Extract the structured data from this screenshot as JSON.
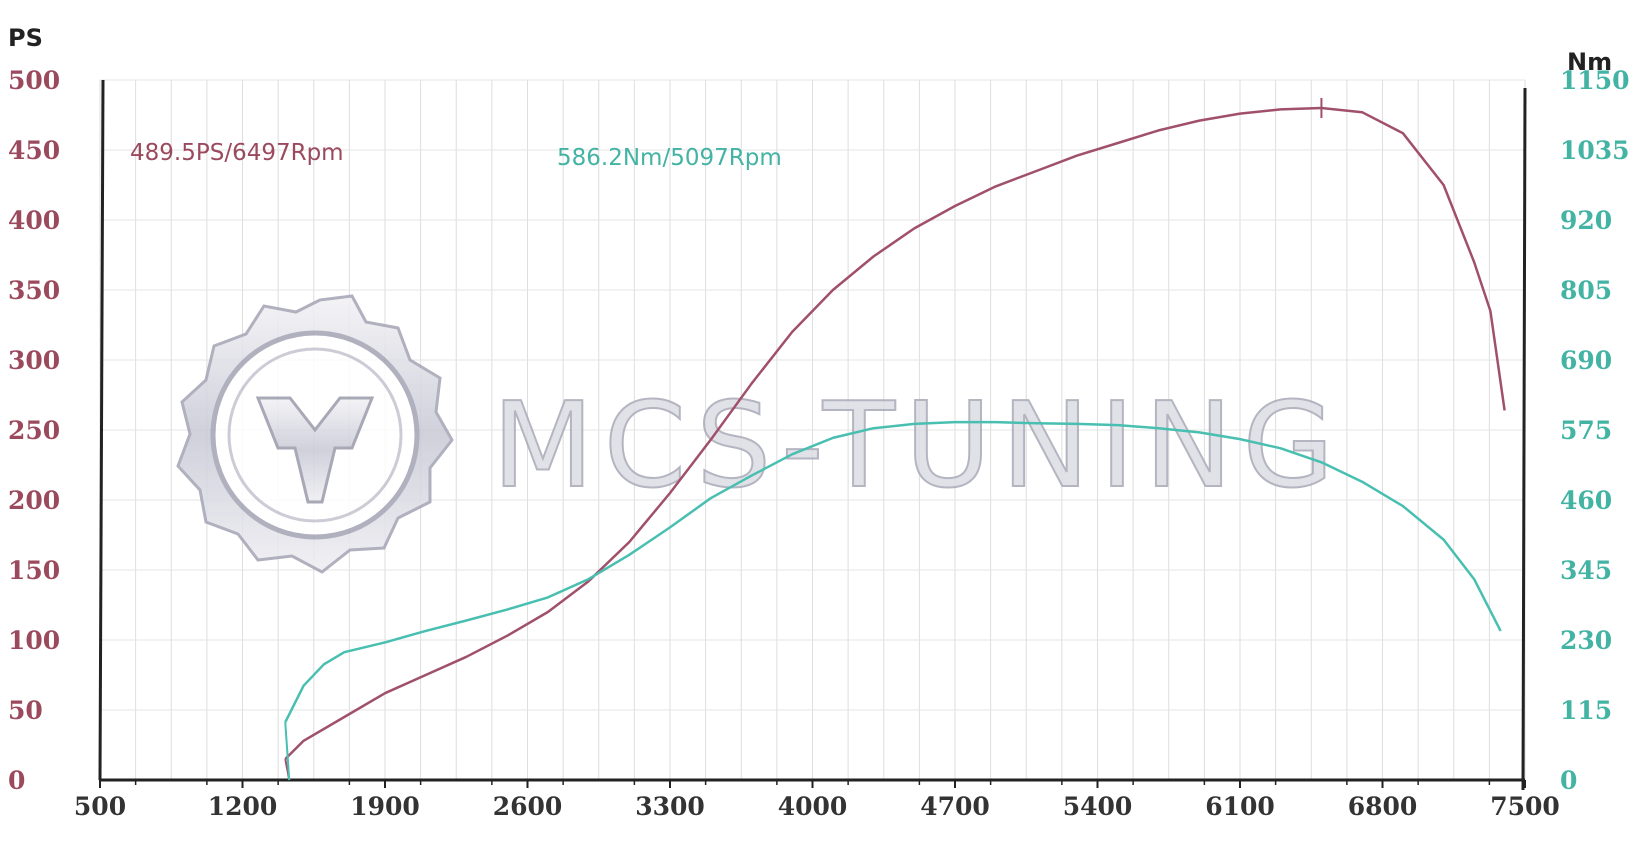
{
  "chart_data": {
    "type": "line",
    "x_range": [
      500,
      7500
    ],
    "x_ticks": [
      "500",
      "1200",
      "1900",
      "2600",
      "3300",
      "4000",
      "4700",
      "5400",
      "6100",
      "6800",
      "7500"
    ],
    "y_left": {
      "label": "PS",
      "range": [
        0,
        500
      ],
      "ticks": [
        "0",
        "50",
        "100",
        "150",
        "200",
        "250",
        "300",
        "350",
        "400",
        "450",
        "500"
      ]
    },
    "y_right": {
      "label": "Nm",
      "range": [
        0,
        1150
      ],
      "ticks": [
        "0",
        "115",
        "230",
        "345",
        "460",
        "575",
        "690",
        "805",
        "920",
        "1035",
        "1150"
      ]
    },
    "grid": true,
    "series": [
      {
        "axis": "left",
        "color": "#a0506a",
        "points": [
          [
            1410,
            15
          ],
          [
            1500,
            28
          ],
          [
            1700,
            45
          ],
          [
            1900,
            62
          ],
          [
            2100,
            75
          ],
          [
            2300,
            88
          ],
          [
            2500,
            103
          ],
          [
            2700,
            120
          ],
          [
            2900,
            142
          ],
          [
            3100,
            170
          ],
          [
            3300,
            205
          ],
          [
            3500,
            243
          ],
          [
            3700,
            283
          ],
          [
            3900,
            320
          ],
          [
            4100,
            350
          ],
          [
            4300,
            374
          ],
          [
            4500,
            394
          ],
          [
            4700,
            410
          ],
          [
            4900,
            424
          ],
          [
            5100,
            435
          ],
          [
            5300,
            446
          ],
          [
            5500,
            455
          ],
          [
            5700,
            464
          ],
          [
            5900,
            471
          ],
          [
            6100,
            476
          ],
          [
            6300,
            479
          ],
          [
            6500,
            480
          ],
          [
            6700,
            477
          ],
          [
            6900,
            462
          ],
          [
            7100,
            425
          ],
          [
            7250,
            370
          ],
          [
            7330,
            335
          ],
          [
            7400,
            264
          ]
        ]
      },
      {
        "axis": "right",
        "color": "#48bfb0",
        "points": [
          [
            1410,
            95
          ],
          [
            1500,
            155
          ],
          [
            1600,
            190
          ],
          [
            1700,
            210
          ],
          [
            1900,
            226
          ],
          [
            2100,
            245
          ],
          [
            2300,
            262
          ],
          [
            2500,
            280
          ],
          [
            2700,
            300
          ],
          [
            2900,
            330
          ],
          [
            3100,
            370
          ],
          [
            3300,
            415
          ],
          [
            3500,
            463
          ],
          [
            3700,
            500
          ],
          [
            3900,
            535
          ],
          [
            4100,
            562
          ],
          [
            4300,
            578
          ],
          [
            4500,
            585
          ],
          [
            4700,
            588
          ],
          [
            4900,
            588
          ],
          [
            5100,
            586
          ],
          [
            5300,
            585
          ],
          [
            5500,
            583
          ],
          [
            5700,
            578
          ],
          [
            5900,
            571
          ],
          [
            6100,
            560
          ],
          [
            6300,
            545
          ],
          [
            6500,
            522
          ],
          [
            6700,
            490
          ],
          [
            6900,
            450
          ],
          [
            7100,
            395
          ],
          [
            7250,
            330
          ],
          [
            7380,
            245
          ]
        ]
      }
    ],
    "annotations": [
      {
        "text": "489.5PS/6497Rpm",
        "series": 0
      },
      {
        "text": "586.2Nm/5097Rpm",
        "series": 1
      }
    ],
    "watermark": "MCS-TUNING"
  }
}
